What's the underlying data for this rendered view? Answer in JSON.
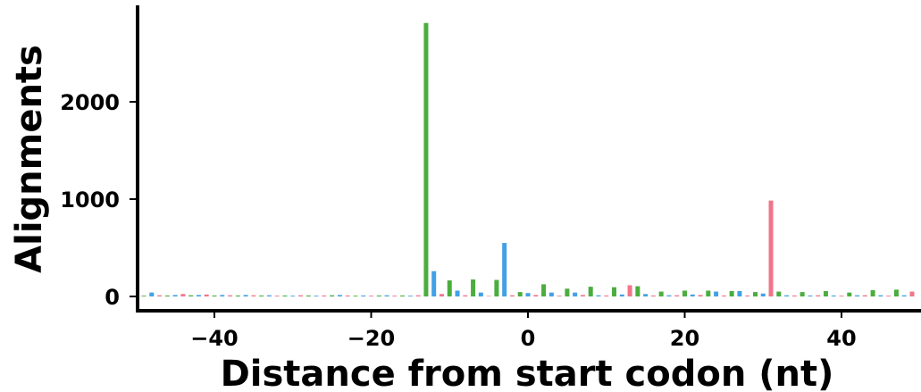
{
  "chart_data": {
    "type": "bar",
    "xlabel": "Distance from start codon (nt)",
    "ylabel": "Alignments",
    "xlim": [
      -50,
      50
    ],
    "ylim": [
      -150,
      2950
    ],
    "xticks": [
      -40,
      -20,
      0,
      20,
      40
    ],
    "xtick_labels": [
      "−40",
      "−20",
      "0",
      "20",
      "40"
    ],
    "yticks": [
      0,
      1000,
      2000
    ],
    "ytick_labels": [
      "0",
      "1000",
      "2000"
    ],
    "grid": false,
    "legend": "none",
    "frame_colors": [
      "#f0758a",
      "#4bad3e",
      "#43a0e6"
    ],
    "positions": [
      -49,
      -48,
      -47,
      -46,
      -45,
      -44,
      -43,
      -42,
      -41,
      -40,
      -39,
      -38,
      -37,
      -36,
      -35,
      -34,
      -33,
      -32,
      -31,
      -30,
      -29,
      -28,
      -27,
      -26,
      -25,
      -24,
      -23,
      -22,
      -21,
      -20,
      -19,
      -18,
      -17,
      -16,
      -15,
      -14,
      -13,
      -12,
      -11,
      -10,
      -9,
      -8,
      -7,
      -6,
      -5,
      -4,
      -3,
      -2,
      -1,
      0,
      1,
      2,
      3,
      4,
      5,
      6,
      7,
      8,
      9,
      10,
      11,
      12,
      13,
      14,
      15,
      16,
      17,
      18,
      19,
      20,
      21,
      22,
      23,
      24,
      25,
      26,
      27,
      28,
      29,
      30,
      31,
      32,
      33,
      34,
      35,
      36,
      37,
      38,
      39,
      40,
      41,
      42,
      43,
      44,
      45,
      46,
      47,
      48,
      49
    ],
    "values": [
      8,
      40,
      12,
      10,
      15,
      25,
      12,
      15,
      20,
      10,
      15,
      12,
      10,
      15,
      12,
      10,
      12,
      8,
      10,
      8,
      12,
      10,
      8,
      10,
      12,
      15,
      10,
      8,
      10,
      8,
      10,
      12,
      8,
      10,
      8,
      12,
      2810,
      260,
      25,
      165,
      60,
      12,
      175,
      40,
      5,
      170,
      550,
      12,
      45,
      35,
      15,
      125,
      40,
      8,
      80,
      40,
      15,
      100,
      12,
      10,
      95,
      20,
      115,
      105,
      25,
      10,
      50,
      12,
      12,
      60,
      20,
      15,
      60,
      50,
      10,
      55,
      55,
      10,
      45,
      30,
      985,
      50,
      12,
      10,
      45,
      10,
      12,
      55,
      10,
      8,
      40,
      12,
      12,
      65,
      12,
      8,
      70,
      12,
      50
    ],
    "colors": [
      "#4bad3e",
      "#43a0e6",
      "#f0758a",
      "#4bad3e",
      "#43a0e6",
      "#f0758a",
      "#4bad3e",
      "#43a0e6",
      "#f0758a",
      "#4bad3e",
      "#43a0e6",
      "#f0758a",
      "#4bad3e",
      "#43a0e6",
      "#f0758a",
      "#4bad3e",
      "#43a0e6",
      "#f0758a",
      "#4bad3e",
      "#43a0e6",
      "#f0758a",
      "#4bad3e",
      "#43a0e6",
      "#f0758a",
      "#4bad3e",
      "#43a0e6",
      "#f0758a",
      "#4bad3e",
      "#43a0e6",
      "#f0758a",
      "#4bad3e",
      "#43a0e6",
      "#f0758a",
      "#4bad3e",
      "#43a0e6",
      "#f0758a",
      "#4bad3e",
      "#43a0e6",
      "#f0758a",
      "#4bad3e",
      "#43a0e6",
      "#f0758a",
      "#4bad3e",
      "#43a0e6",
      "#f0758a",
      "#4bad3e",
      "#43a0e6",
      "#f0758a",
      "#4bad3e",
      "#43a0e6",
      "#f0758a",
      "#4bad3e",
      "#43a0e6",
      "#f0758a",
      "#4bad3e",
      "#43a0e6",
      "#f0758a",
      "#4bad3e",
      "#43a0e6",
      "#f0758a",
      "#4bad3e",
      "#43a0e6",
      "#f0758a",
      "#4bad3e",
      "#43a0e6",
      "#f0758a",
      "#4bad3e",
      "#43a0e6",
      "#f0758a",
      "#4bad3e",
      "#43a0e6",
      "#f0758a",
      "#4bad3e",
      "#43a0e6",
      "#f0758a",
      "#4bad3e",
      "#43a0e6",
      "#f0758a",
      "#4bad3e",
      "#43a0e6",
      "#f0758a",
      "#4bad3e",
      "#43a0e6",
      "#f0758a",
      "#4bad3e",
      "#43a0e6",
      "#f0758a",
      "#4bad3e",
      "#43a0e6",
      "#f0758a",
      "#4bad3e",
      "#43a0e6",
      "#f0758a",
      "#4bad3e",
      "#43a0e6",
      "#f0758a",
      "#4bad3e",
      "#43a0e6",
      "#f0758a"
    ]
  }
}
